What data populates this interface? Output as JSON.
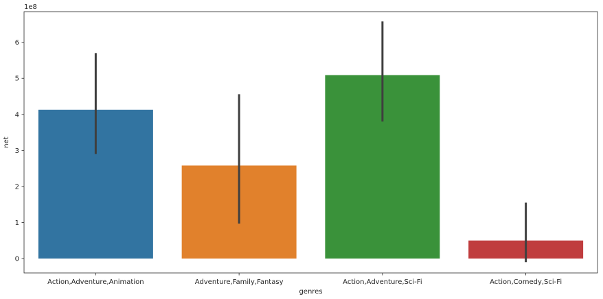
{
  "chart_data": {
    "type": "bar",
    "categories": [
      "Action,Adventure,Animation",
      "Adventure,Family,Fantasy",
      "Action,Adventure,Sci-Fi",
      "Action,Comedy,Sci-Fi"
    ],
    "values": [
      413000000,
      258000000,
      509000000,
      50000000
    ],
    "error_bars": [
      {
        "low": 290000000,
        "high": 570000000
      },
      {
        "low": 97000000,
        "high": 456000000
      },
      {
        "low": 380000000,
        "high": 658000000
      },
      {
        "low": -10000000,
        "high": 155000000
      }
    ],
    "colors": [
      "#3274a1",
      "#e1812c",
      "#3a923a",
      "#c03d3e"
    ],
    "error_color": "#3f3f3f",
    "xlabel": "genres",
    "ylabel": "net",
    "ylim": [
      -40000000,
      685000000
    ],
    "yticks": [
      0,
      100000000,
      200000000,
      300000000,
      400000000,
      500000000,
      600000000
    ],
    "ytick_labels": [
      "0",
      "1",
      "2",
      "3",
      "4",
      "5",
      "6"
    ],
    "offset_label": "1e8",
    "grid": false
  }
}
